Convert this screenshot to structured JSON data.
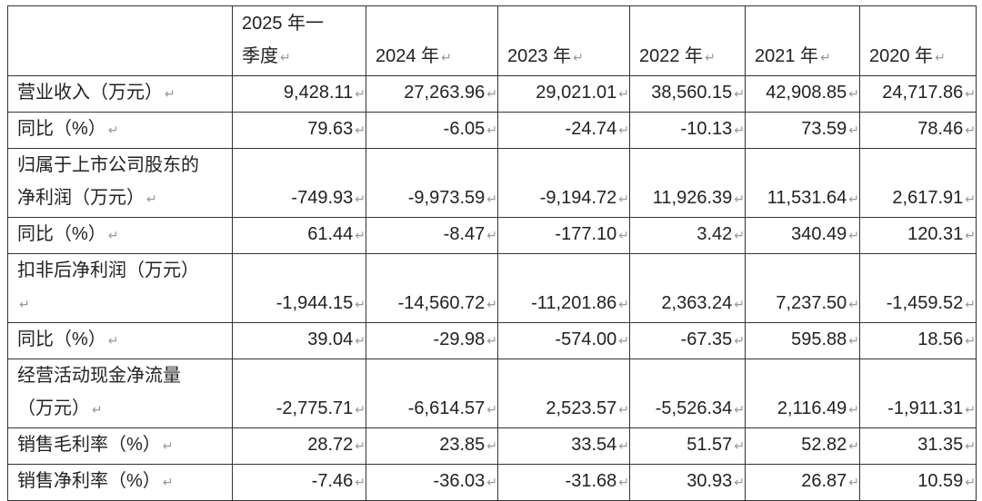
{
  "table": {
    "columns": [
      "2025 年一季度",
      "2024 年",
      "2023 年",
      "2022 年",
      "2021 年",
      "2020 年"
    ],
    "rows": [
      {
        "label": "营业收入（万元）",
        "values": [
          "9,428.11",
          "27,263.96",
          "29,021.01",
          "38,560.15",
          "42,908.85",
          "24,717.86"
        ]
      },
      {
        "label": "同比（%）",
        "values": [
          "79.63",
          "-6.05",
          "-24.74",
          "-10.13",
          "73.59",
          "78.46"
        ]
      },
      {
        "label": "归属于上市公司股东的净利润（万元）",
        "values": [
          "-749.93",
          "-9,973.59",
          "-9,194.72",
          "11,926.39",
          "11,531.64",
          "2,617.91"
        ]
      },
      {
        "label": "同比（%）",
        "values": [
          "61.44",
          "-8.47",
          "-177.10",
          "3.42",
          "340.49",
          "120.31"
        ]
      },
      {
        "label": "扣非后净利润（万元）",
        "values": [
          "-1,944.15",
          "-14,560.72",
          "-11,201.86",
          "2,363.24",
          "7,237.50",
          "-1,459.52"
        ]
      },
      {
        "label": "同比（%）",
        "values": [
          "39.04",
          "-29.98",
          "-574.00",
          "-67.35",
          "595.88",
          "18.56"
        ]
      },
      {
        "label": "经营活动现金净流量（万元）",
        "values": [
          "-2,775.71",
          "-6,614.57",
          "2,523.57",
          "-5,526.34",
          "2,116.49",
          "-1,911.31"
        ]
      },
      {
        "label": "销售毛利率（%）",
        "values": [
          "28.72",
          "23.85",
          "33.54",
          "51.57",
          "52.82",
          "31.35"
        ]
      },
      {
        "label": "销售净利率（%）",
        "values": [
          "-7.46",
          "-36.03",
          "-31.68",
          "30.93",
          "26.87",
          "10.59"
        ]
      }
    ]
  }
}
